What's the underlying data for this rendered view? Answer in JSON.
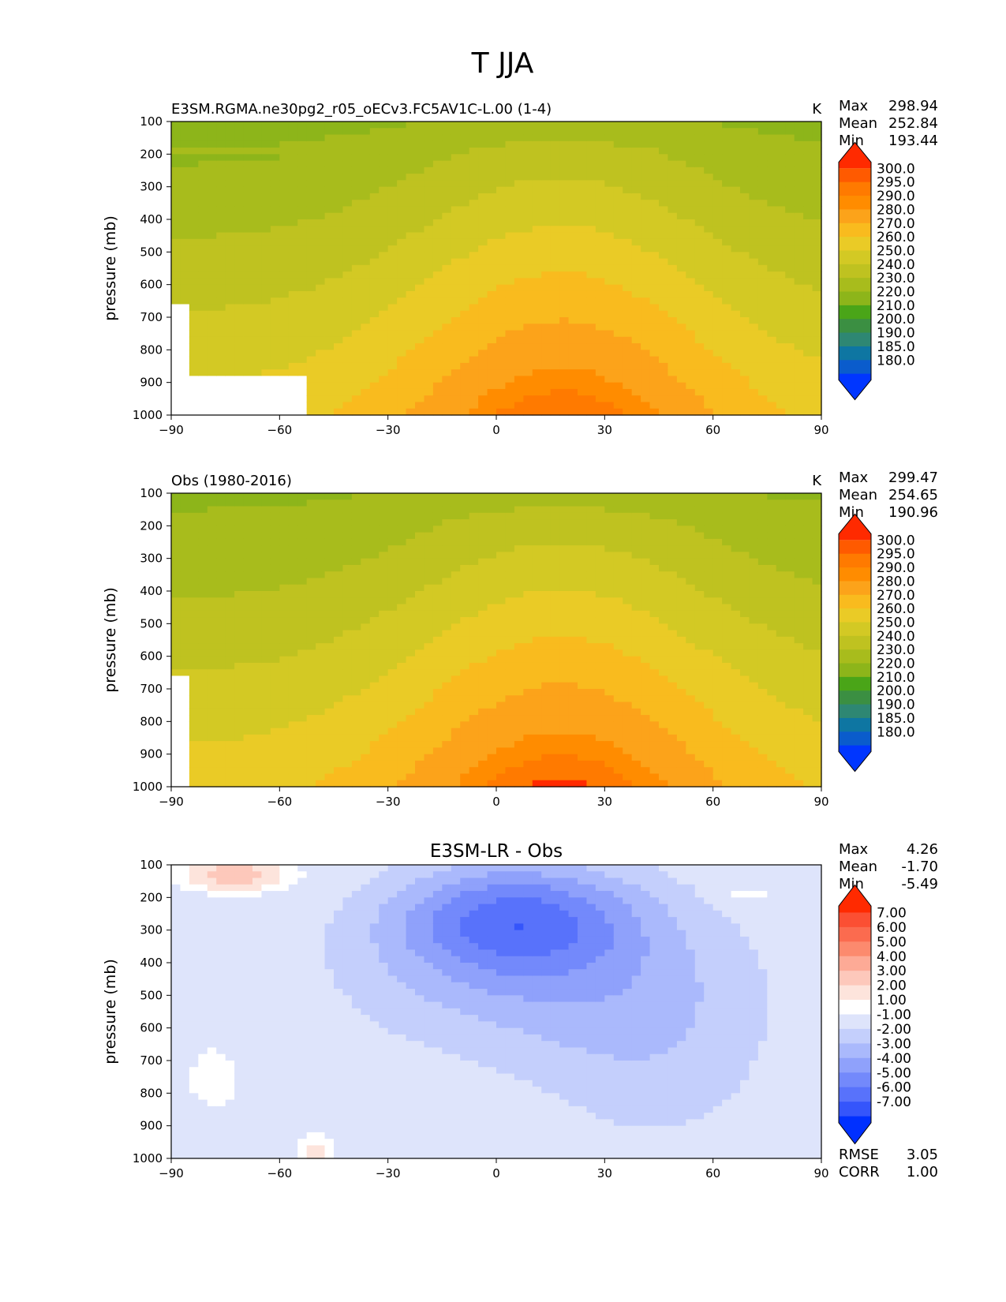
{
  "figure": {
    "title": "T JJA"
  },
  "chart_data": [
    {
      "type": "heatmap",
      "title_left": "E3SM.RGMA.ne30pg2_r05_oECv3.FC5AV1C-L.00 (1-4)",
      "title_right": "K",
      "ylabel": "pressure (mb)",
      "xlim": [
        -90,
        90
      ],
      "ylim": [
        1000,
        100
      ],
      "x_ticks": [
        "−90",
        "−60",
        "−30",
        "0",
        "30",
        "60",
        "90"
      ],
      "y_ticks": [
        "100",
        "200",
        "300",
        "400",
        "500",
        "600",
        "700",
        "800",
        "900",
        "1000"
      ],
      "stats": [
        {
          "label": "Max",
          "value": "298.94"
        },
        {
          "label": "Mean",
          "value": "252.84"
        },
        {
          "label": "Min",
          "value": "193.44"
        }
      ],
      "colorbar": {
        "levels": [
          "300.0",
          "295.0",
          "290.0",
          "280.0",
          "270.0",
          "260.0",
          "250.0",
          "240.0",
          "230.0",
          "220.0",
          "210.0",
          "200.0",
          "190.0",
          "185.0",
          "180.0"
        ],
        "colors": [
          "#ff2a00",
          "#ff5a00",
          "#ff7a00",
          "#ff8c00",
          "#fca31a",
          "#f9bb1e",
          "#eacb26",
          "#d3c924",
          "#bfc220",
          "#a8bc1c",
          "#8db51a",
          "#4aa518",
          "#3b8f42",
          "#2e8773",
          "#0e76a2",
          "#0a5ccc",
          "#0036ff"
        ]
      },
      "field": "model"
    },
    {
      "type": "heatmap",
      "title_left": "Obs (1980-2016)",
      "title_right": "K",
      "ylabel": "pressure (mb)",
      "xlim": [
        -90,
        90
      ],
      "ylim": [
        1000,
        100
      ],
      "x_ticks": [
        "−90",
        "−60",
        "−30",
        "0",
        "30",
        "60",
        "90"
      ],
      "y_ticks": [
        "100",
        "200",
        "300",
        "400",
        "500",
        "600",
        "700",
        "800",
        "900",
        "1000"
      ],
      "stats": [
        {
          "label": "Max",
          "value": "299.47"
        },
        {
          "label": "Mean",
          "value": "254.65"
        },
        {
          "label": "Min",
          "value": "190.96"
        }
      ],
      "colorbar": {
        "levels": [
          "300.0",
          "295.0",
          "290.0",
          "280.0",
          "270.0",
          "260.0",
          "250.0",
          "240.0",
          "230.0",
          "220.0",
          "210.0",
          "200.0",
          "190.0",
          "185.0",
          "180.0"
        ],
        "colors": [
          "#ff2a00",
          "#ff5a00",
          "#ff7a00",
          "#ff8c00",
          "#fca31a",
          "#f9bb1e",
          "#eacb26",
          "#d3c924",
          "#bfc220",
          "#a8bc1c",
          "#8db51a",
          "#4aa518",
          "#3b8f42",
          "#2e8773",
          "#0e76a2",
          "#0a5ccc",
          "#0036ff"
        ]
      },
      "field": "obs"
    },
    {
      "type": "heatmap",
      "title_center": "E3SM-LR - Obs",
      "ylabel": "pressure (mb)",
      "xlim": [
        -90,
        90
      ],
      "ylim": [
        1000,
        100
      ],
      "x_ticks": [
        "−90",
        "−60",
        "−30",
        "0",
        "30",
        "60",
        "90"
      ],
      "y_ticks": [
        "100",
        "200",
        "300",
        "400",
        "500",
        "600",
        "700",
        "800",
        "900",
        "1000"
      ],
      "stats": [
        {
          "label": "Max",
          "value": "4.26"
        },
        {
          "label": "Mean",
          "value": "-1.70"
        },
        {
          "label": "Min",
          "value": "-5.49"
        }
      ],
      "metrics": [
        {
          "label": "RMSE",
          "value": "3.05"
        },
        {
          "label": "CORR",
          "value": "1.00"
        }
      ],
      "colorbar": {
        "levels": [
          "7.00",
          "6.00",
          "5.00",
          "4.00",
          "3.00",
          "2.00",
          "1.00",
          "-1.00",
          "-2.00",
          "-3.00",
          "-4.00",
          "-5.00",
          "-6.00",
          "-7.00"
        ],
        "colors": [
          "#ff2a00",
          "#fb4f33",
          "#fb6b4f",
          "#fc8a6e",
          "#fdaa96",
          "#fdc8bb",
          "#fde4dc",
          "#ffffff",
          "#dee4fb",
          "#c4cffc",
          "#aab9fc",
          "#8fa1fb",
          "#7389fb",
          "#5872fb",
          "#3555fb",
          "#0030ff"
        ]
      },
      "field": "diff"
    }
  ]
}
